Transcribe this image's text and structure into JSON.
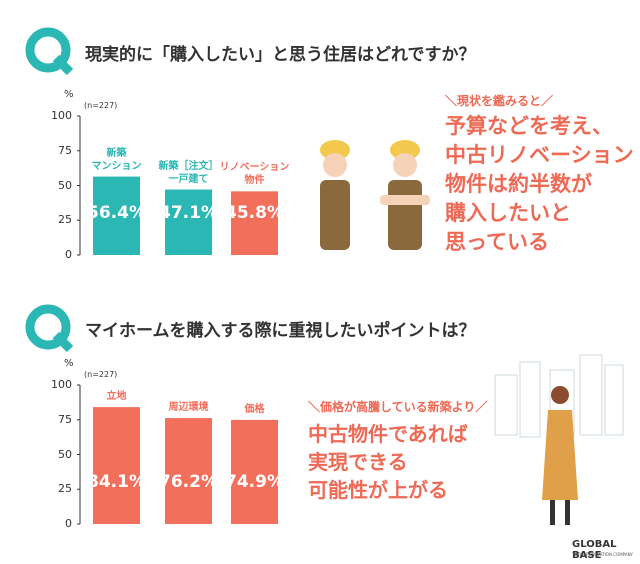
{
  "chart_data": [
    {
      "type": "bar",
      "title": "現実的に「購入したい」と思う住居はどれですか？",
      "y_unit": "%",
      "note": "(n=227)",
      "categories": [
        "新築\nマンション",
        "新築［注文］\n一戸建て",
        "リノベーション\n物件"
      ],
      "values": [
        56.4,
        47.1,
        45.8
      ],
      "value_labels": [
        "56.4%",
        "47.1%",
        "45.8%"
      ],
      "colors": [
        "#2bb7b3",
        "#2bb7b3",
        "#f26f5c"
      ],
      "ylim": [
        0,
        100
      ],
      "yticks": [
        0,
        25,
        50,
        75,
        100
      ],
      "callout_heading": "＼現状を鑑みると／",
      "callout_text": "予算などを考え、\n中古リノベーション\n物件は約半数が\n購入したいと\n思っている"
    },
    {
      "type": "bar",
      "title": "マイホームを購入する際に重視したいポイントは？",
      "y_unit": "%",
      "note": "(n=227)",
      "categories": [
        "立地",
        "周辺環境",
        "価格"
      ],
      "values": [
        84.1,
        76.2,
        74.9
      ],
      "value_labels": [
        "84.1%",
        "76.2%",
        "74.9%"
      ],
      "colors": [
        "#f26f5c",
        "#f26f5c",
        "#f26f5c"
      ],
      "ylim": [
        0,
        100
      ],
      "yticks": [
        0,
        25,
        50,
        75,
        100
      ],
      "callout_heading": "＼価格が高騰している新築より／",
      "callout_text": "中古物件であれば\n実現できる\n可能性が上がる"
    }
  ],
  "footer": {
    "brand": "GLOBAL BASE",
    "tagline": "TOTAL RENOVATION COMPANY"
  }
}
